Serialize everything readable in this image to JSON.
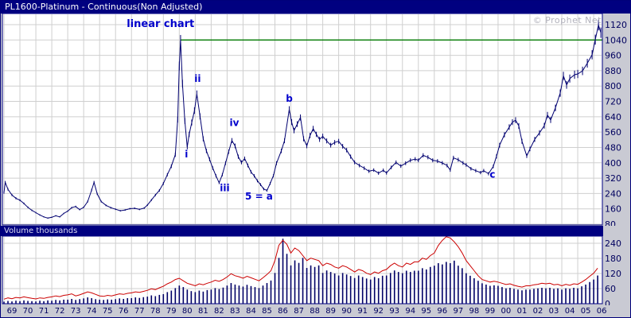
{
  "titlebar": {
    "title": "PL1600-Platinum - Continuous(Non Adjusted)"
  },
  "watermark": "© Prophet Net",
  "volume_panel_label": "Volume  thousands",
  "colors": {
    "navy": "#000080",
    "grid": "#cfcfcf",
    "annotation": "#0000cc",
    "axis_text": "#00005e",
    "background": "#c9cad3",
    "plot_background": "#ffffff"
  },
  "chart_data": {
    "type": "line",
    "title": "PL1600-Platinum - Continuous(Non Adjusted)",
    "x_unit": "year",
    "x_range": [
      1969,
      2006.6
    ],
    "grid": true,
    "legend": "none",
    "price_axis": {
      "min": 80,
      "max": 1120,
      "step": 80,
      "ticks": [
        1120,
        1040,
        960,
        880,
        800,
        720,
        640,
        560,
        480,
        400,
        320,
        240,
        160,
        80
      ]
    },
    "volume_axis": {
      "min": 0,
      "max": 270,
      "step": 60,
      "ticks": [
        240,
        180,
        120,
        60,
        0
      ],
      "label": "Volume thousands"
    },
    "year_labels": [
      "69",
      "70",
      "71",
      "72",
      "73",
      "74",
      "75",
      "76",
      "77",
      "78",
      "79",
      "80",
      "81",
      "82",
      "83",
      "84",
      "85",
      "86",
      "87",
      "88",
      "89",
      "90",
      "91",
      "92",
      "93",
      "94",
      "95",
      "96",
      "97",
      "98",
      "99",
      "00",
      "01",
      "02",
      "03",
      "04",
      "05",
      "06"
    ],
    "resistance_line": {
      "value": 1040,
      "from_x": 1980.08,
      "to_x": 2006.55,
      "color": "#007a00"
    },
    "price_series": {
      "name": "PL1600 Platinum price",
      "color": "#000070",
      "points": [
        [
          1969,
          245
        ],
        [
          1969.08,
          298
        ],
        [
          1969.25,
          262
        ],
        [
          1969.5,
          232
        ],
        [
          1969.75,
          215
        ],
        [
          1970,
          205
        ],
        [
          1970.25,
          188
        ],
        [
          1970.5,
          168
        ],
        [
          1970.75,
          152
        ],
        [
          1971,
          140
        ],
        [
          1971.25,
          128
        ],
        [
          1971.5,
          118
        ],
        [
          1971.75,
          112
        ],
        [
          1972,
          116
        ],
        [
          1972.25,
          124
        ],
        [
          1972.5,
          118
        ],
        [
          1972.75,
          136
        ],
        [
          1973,
          148
        ],
        [
          1973.25,
          166
        ],
        [
          1973.5,
          172
        ],
        [
          1973.75,
          156
        ],
        [
          1974,
          168
        ],
        [
          1974.25,
          198
        ],
        [
          1974.5,
          258
        ],
        [
          1974.65,
          298
        ],
        [
          1974.85,
          238
        ],
        [
          1975.1,
          198
        ],
        [
          1975.4,
          178
        ],
        [
          1975.7,
          166
        ],
        [
          1976,
          158
        ],
        [
          1976.3,
          150
        ],
        [
          1976.6,
          154
        ],
        [
          1976.9,
          161
        ],
        [
          1977.2,
          163
        ],
        [
          1977.5,
          157
        ],
        [
          1977.8,
          164
        ],
        [
          1978,
          180
        ],
        [
          1978.25,
          206
        ],
        [
          1978.5,
          232
        ],
        [
          1978.75,
          256
        ],
        [
          1979,
          292
        ],
        [
          1979.25,
          338
        ],
        [
          1979.5,
          382
        ],
        [
          1979.75,
          442
        ],
        [
          1979.9,
          625
        ],
        [
          1980,
          905
        ],
        [
          1980.08,
          1040
        ],
        [
          1980.2,
          812
        ],
        [
          1980.35,
          618
        ],
        [
          1980.5,
          482
        ],
        [
          1980.62,
          548
        ],
        [
          1980.78,
          610
        ],
        [
          1980.95,
          672
        ],
        [
          1981.1,
          758
        ],
        [
          1981.3,
          642
        ],
        [
          1981.5,
          525
        ],
        [
          1981.7,
          462
        ],
        [
          1981.9,
          418
        ],
        [
          1982.1,
          372
        ],
        [
          1982.3,
          332
        ],
        [
          1982.5,
          296
        ],
        [
          1982.7,
          338
        ],
        [
          1982.9,
          398
        ],
        [
          1983.1,
          458
        ],
        [
          1983.3,
          516
        ],
        [
          1983.5,
          488
        ],
        [
          1983.7,
          432
        ],
        [
          1983.9,
          402
        ],
        [
          1984.1,
          422
        ],
        [
          1984.3,
          386
        ],
        [
          1984.5,
          352
        ],
        [
          1984.7,
          332
        ],
        [
          1984.9,
          306
        ],
        [
          1985.1,
          286
        ],
        [
          1985.3,
          263
        ],
        [
          1985.5,
          256
        ],
        [
          1985.7,
          292
        ],
        [
          1985.9,
          332
        ],
        [
          1986.1,
          398
        ],
        [
          1986.4,
          462
        ],
        [
          1986.6,
          515
        ],
        [
          1986.9,
          678
        ],
        [
          1987.05,
          612
        ],
        [
          1987.2,
          568
        ],
        [
          1987.4,
          602
        ],
        [
          1987.6,
          636
        ],
        [
          1987.8,
          525
        ],
        [
          1988,
          488
        ],
        [
          1988.2,
          542
        ],
        [
          1988.4,
          578
        ],
        [
          1988.6,
          548
        ],
        [
          1988.8,
          522
        ],
        [
          1989,
          538
        ],
        [
          1989.25,
          514
        ],
        [
          1989.5,
          492
        ],
        [
          1989.75,
          506
        ],
        [
          1990,
          512
        ],
        [
          1990.25,
          486
        ],
        [
          1990.5,
          466
        ],
        [
          1990.75,
          432
        ],
        [
          1991,
          402
        ],
        [
          1991.3,
          386
        ],
        [
          1991.6,
          372
        ],
        [
          1991.9,
          356
        ],
        [
          1992.2,
          362
        ],
        [
          1992.5,
          346
        ],
        [
          1992.8,
          361
        ],
        [
          1993,
          347
        ],
        [
          1993.3,
          376
        ],
        [
          1993.6,
          402
        ],
        [
          1993.9,
          383
        ],
        [
          1994.2,
          398
        ],
        [
          1994.5,
          413
        ],
        [
          1994.8,
          419
        ],
        [
          1995,
          413
        ],
        [
          1995.3,
          439
        ],
        [
          1995.6,
          429
        ],
        [
          1995.9,
          413
        ],
        [
          1996.2,
          409
        ],
        [
          1996.5,
          399
        ],
        [
          1996.8,
          386
        ],
        [
          1997,
          362
        ],
        [
          1997.2,
          426
        ],
        [
          1997.5,
          416
        ],
        [
          1997.8,
          399
        ],
        [
          1998,
          389
        ],
        [
          1998.3,
          369
        ],
        [
          1998.6,
          359
        ],
        [
          1998.9,
          349
        ],
        [
          1999.1,
          359
        ],
        [
          1999.4,
          343
        ],
        [
          1999.7,
          381
        ],
        [
          1999.9,
          433
        ],
        [
          2000.1,
          492
        ],
        [
          2000.4,
          546
        ],
        [
          2000.7,
          586
        ],
        [
          2000.9,
          612
        ],
        [
          2001.1,
          622
        ],
        [
          2001.3,
          592
        ],
        [
          2001.5,
          512
        ],
        [
          2001.8,
          436
        ],
        [
          2002,
          472
        ],
        [
          2002.3,
          522
        ],
        [
          2002.6,
          556
        ],
        [
          2002.9,
          593
        ],
        [
          2003.1,
          649
        ],
        [
          2003.3,
          623
        ],
        [
          2003.6,
          686
        ],
        [
          2003.9,
          763
        ],
        [
          2004.1,
          853
        ],
        [
          2004.3,
          806
        ],
        [
          2004.5,
          839
        ],
        [
          2004.8,
          859
        ],
        [
          2005,
          863
        ],
        [
          2005.3,
          879
        ],
        [
          2005.6,
          919
        ],
        [
          2005.9,
          963
        ],
        [
          2006.1,
          1042
        ],
        [
          2006.3,
          1118
        ],
        [
          2006.45,
          1078
        ]
      ]
    },
    "volume_bars": {
      "name": "volume",
      "color": "#000066",
      "start": 1969,
      "step": 0.25,
      "values": [
        8,
        11,
        9,
        12,
        10,
        13,
        11,
        10,
        9,
        12,
        10,
        13,
        12,
        15,
        13,
        16,
        16,
        19,
        15,
        18,
        21,
        25,
        22,
        18,
        16,
        15,
        17,
        16,
        18,
        21,
        19,
        22,
        22,
        25,
        23,
        26,
        28,
        33,
        30,
        35,
        38,
        46,
        52,
        62,
        72,
        66,
        56,
        50,
        46,
        52,
        48,
        54,
        56,
        62,
        58,
        64,
        72,
        82,
        76,
        72,
        68,
        75,
        70,
        66,
        62,
        72,
        82,
        92,
        122,
        182,
        258,
        198,
        152,
        172,
        162,
        182,
        142,
        152,
        146,
        152,
        122,
        132,
        126,
        120,
        112,
        122,
        116,
        110,
        102,
        112,
        106,
        100,
        96,
        106,
        101,
        111,
        112,
        122,
        132,
        126,
        121,
        131,
        126,
        131,
        131,
        141,
        136,
        146,
        151,
        161,
        156,
        166,
        161,
        171,
        151,
        141,
        121,
        111,
        101,
        91,
        81,
        76,
        71,
        73,
        71,
        66,
        61,
        63,
        59,
        56,
        53,
        56,
        56,
        59,
        61,
        63,
        61,
        63,
        59,
        61,
        56,
        61,
        59,
        63,
        61,
        69,
        76,
        86,
        96,
        112
      ]
    },
    "volume_line": {
      "name": "volume overlay line",
      "color": "#cc0000",
      "start": 1969,
      "step": 0.25,
      "values": [
        18,
        23,
        20,
        25,
        23,
        27,
        24,
        21,
        19,
        23,
        21,
        25,
        27,
        31,
        28,
        33,
        35,
        39,
        31,
        35,
        41,
        47,
        43,
        37,
        31,
        29,
        33,
        31,
        35,
        39,
        37,
        41,
        43,
        47,
        45,
        49,
        53,
        59,
        56,
        63,
        69,
        79,
        86,
        96,
        101,
        91,
        81,
        76,
        71,
        79,
        75,
        81,
        86,
        93,
        89,
        96,
        106,
        119,
        111,
        107,
        101,
        109,
        103,
        97,
        91,
        103,
        116,
        131,
        171,
        232,
        252,
        236,
        201,
        221,
        211,
        191,
        171,
        181,
        176,
        171,
        151,
        161,
        156,
        146,
        141,
        151,
        146,
        136,
        126,
        136,
        131,
        121,
        116,
        126,
        121,
        131,
        136,
        151,
        161,
        151,
        146,
        161,
        156,
        166,
        166,
        181,
        176,
        191,
        201,
        231,
        251,
        266,
        261,
        246,
        226,
        201,
        171,
        151,
        131,
        111,
        96,
        91,
        86,
        89,
        86,
        81,
        76,
        79,
        73,
        69,
        66,
        71,
        71,
        75,
        77,
        81,
        79,
        81,
        75,
        77,
        71,
        77,
        73,
        79,
        77,
        86,
        96,
        109,
        121,
        141
      ]
    },
    "annotations": [
      {
        "text": "linear chart",
        "x": 1976.7,
        "y": 1108,
        "size": 13,
        "anchor": "start"
      },
      {
        "text": "ii",
        "x": 1981.15,
        "y": 822
      },
      {
        "text": "i",
        "x": 1980.45,
        "y": 428
      },
      {
        "text": "iii",
        "x": 1982.85,
        "y": 252
      },
      {
        "text": "iv",
        "x": 1983.45,
        "y": 592
      },
      {
        "text": "5 = a",
        "x": 1985.0,
        "y": 208
      },
      {
        "text": "b",
        "x": 1986.9,
        "y": 718
      },
      {
        "text": "c",
        "x": 1999.65,
        "y": 322
      }
    ]
  }
}
